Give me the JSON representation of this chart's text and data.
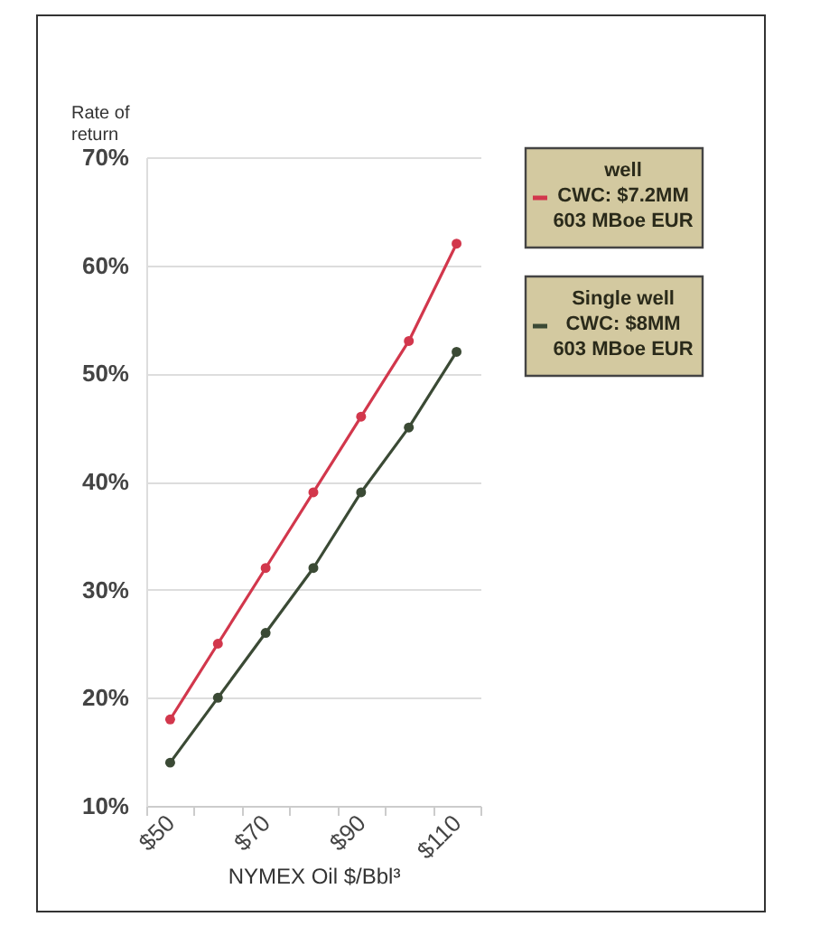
{
  "chart_data": {
    "type": "line",
    "categories": [
      "$50",
      null,
      "$70",
      null,
      "$90",
      null,
      "$110"
    ],
    "series": [
      {
        "name": "well\nCWC: $7.2MM\n603 MBoe EUR",
        "color": "#d2374c",
        "values": [
          18,
          25,
          32,
          39,
          46,
          53,
          62
        ]
      },
      {
        "name": "Single well\nCWC: $8MM\n603 MBoe EUR",
        "color": "#3b4a35",
        "values": [
          14,
          20,
          26,
          32,
          39,
          45,
          52
        ]
      }
    ],
    "xlabel": "NYMEX Oil $/Bbl³",
    "ylabel": "Rate of return",
    "ylim": [
      10,
      70
    ],
    "yticks": [
      {
        "value": 10,
        "label": "10%"
      },
      {
        "value": 20,
        "label": "20%"
      },
      {
        "value": 30,
        "label": "30%"
      },
      {
        "value": 40,
        "label": "40%"
      },
      {
        "value": 50,
        "label": "50%"
      },
      {
        "value": 60,
        "label": "60%"
      },
      {
        "value": 70,
        "label": "70%"
      }
    ],
    "grid": "y",
    "legend": "top right",
    "marker": "circle",
    "line_style": "solid"
  }
}
